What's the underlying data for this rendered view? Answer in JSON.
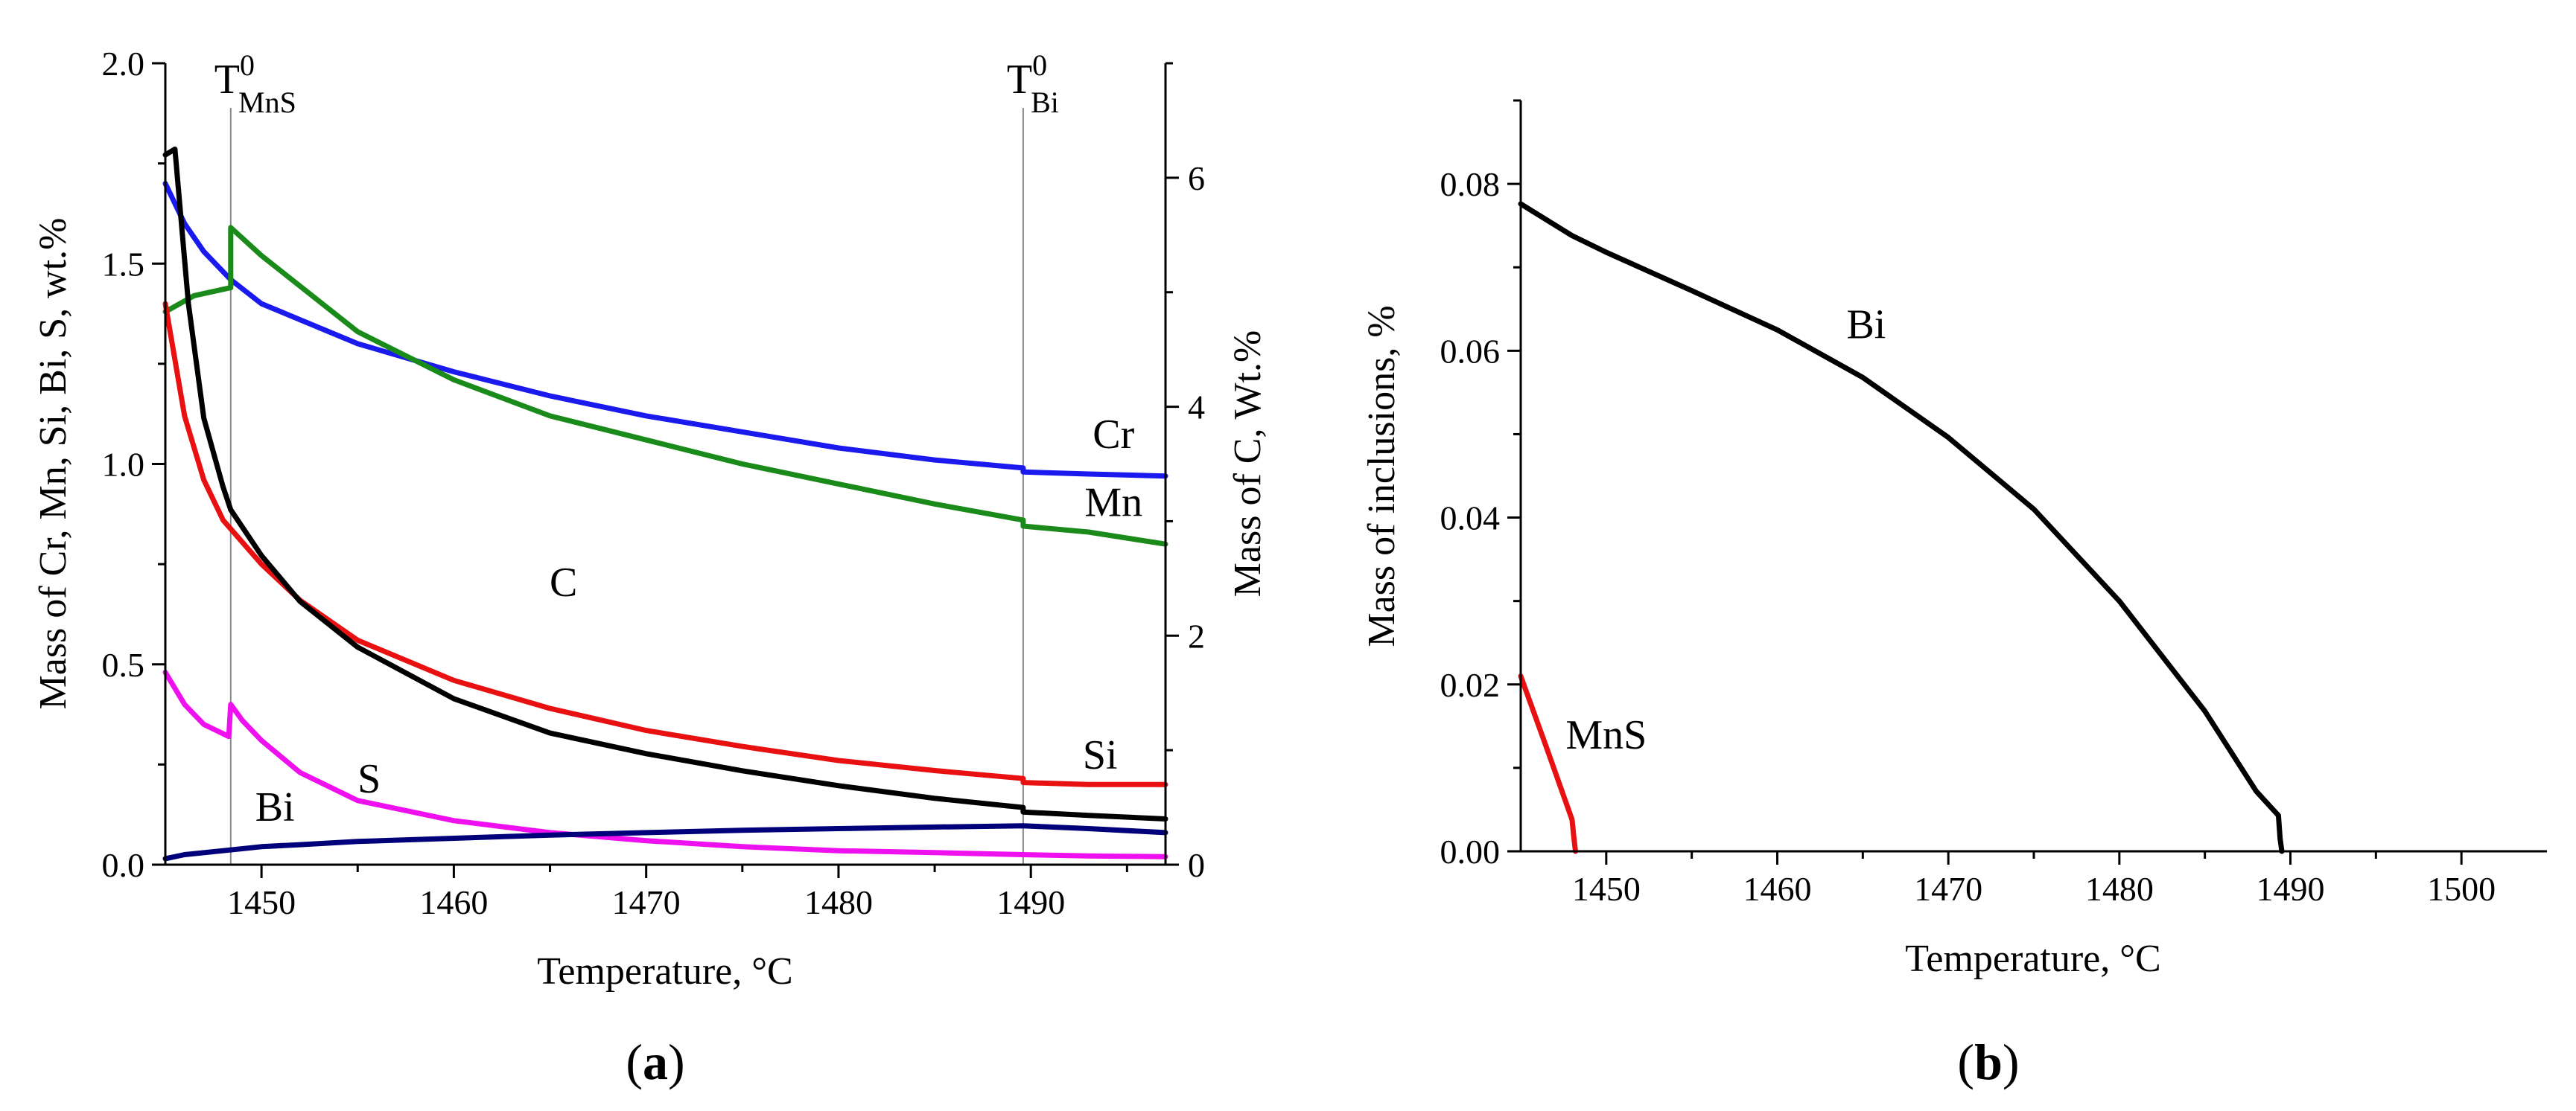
{
  "chart_data": [
    {
      "id": "a",
      "type": "line",
      "panel_label": "(a)",
      "panel_letter": "a",
      "xlabel": "Temperature, °C",
      "ylabel": "Mass of Cr, Mn, Si, Bi, S, wt.%",
      "y2label": "Mass of C, Wt.%",
      "xlim": [
        1445,
        1497
      ],
      "ylim": [
        0,
        2.0
      ],
      "y2lim": [
        0,
        7
      ],
      "xticks": [
        1450,
        1460,
        1470,
        1480,
        1490
      ],
      "yticks": [
        "0.0",
        "0.5",
        "1.0",
        "1.5",
        "2.0"
      ],
      "y2ticks": [
        0,
        2,
        4,
        6
      ],
      "markers": [
        {
          "x": 1448.4,
          "base": "T",
          "sup": "0",
          "sub": "MnS"
        },
        {
          "x": 1489.6,
          "base": "T",
          "sup": "0",
          "sub": "Bi"
        }
      ],
      "series": [
        {
          "name": "Cr",
          "axis": "left",
          "color": "#1a1aee",
          "label_at": [
            1494.3,
            1.04
          ],
          "x": [
            1445,
            1446,
            1447,
            1448.4,
            1450,
            1455,
            1460,
            1465,
            1470,
            1475,
            1480,
            1485,
            1489.6,
            1489.6,
            1493,
            1497
          ],
          "y": [
            1.7,
            1.6,
            1.53,
            1.46,
            1.4,
            1.3,
            1.23,
            1.17,
            1.12,
            1.08,
            1.04,
            1.01,
            0.99,
            0.98,
            0.975,
            0.97
          ]
        },
        {
          "name": "Mn",
          "axis": "left",
          "color": "#1a8a1a",
          "label_at": [
            1494.3,
            0.87
          ],
          "x": [
            1445,
            1446.5,
            1448.4,
            1448.4,
            1450,
            1455,
            1460,
            1465,
            1470,
            1475,
            1480,
            1485,
            1489.6,
            1489.6,
            1493,
            1497
          ],
          "y": [
            1.38,
            1.42,
            1.44,
            1.59,
            1.52,
            1.33,
            1.21,
            1.12,
            1.06,
            1.0,
            0.95,
            0.9,
            0.86,
            0.845,
            0.83,
            0.8
          ]
        },
        {
          "name": "Si",
          "axis": "left",
          "color": "#e81010",
          "label_at": [
            1493.6,
            0.24
          ],
          "x": [
            1445,
            1446,
            1447,
            1448,
            1450,
            1452,
            1455,
            1460,
            1465,
            1470,
            1475,
            1480,
            1485,
            1489.6,
            1489.6,
            1493,
            1497
          ],
          "y": [
            1.4,
            1.12,
            0.96,
            0.86,
            0.75,
            0.66,
            0.56,
            0.46,
            0.39,
            0.335,
            0.295,
            0.26,
            0.235,
            0.215,
            0.205,
            0.2,
            0.2
          ]
        },
        {
          "name": "S",
          "axis": "left",
          "color": "#ee10ee",
          "label_at": [
            1455.6,
            0.18
          ],
          "x": [
            1445,
            1446,
            1447,
            1448.3,
            1448.4,
            1449,
            1450,
            1452,
            1455,
            1460,
            1465,
            1470,
            1475,
            1480,
            1485,
            1489.6,
            1493,
            1497
          ],
          "y": [
            0.48,
            0.4,
            0.35,
            0.32,
            0.4,
            0.36,
            0.31,
            0.23,
            0.16,
            0.11,
            0.08,
            0.06,
            0.045,
            0.035,
            0.03,
            0.025,
            0.022,
            0.02
          ]
        },
        {
          "name": "Bi",
          "axis": "left",
          "color": "#00007a",
          "label_at": [
            1450.7,
            0.11
          ],
          "x": [
            1445,
            1446,
            1448,
            1450,
            1452,
            1455,
            1460,
            1465,
            1470,
            1475,
            1480,
            1485,
            1489.6,
            1493,
            1497
          ],
          "y": [
            0.015,
            0.025,
            0.035,
            0.045,
            0.05,
            0.058,
            0.066,
            0.074,
            0.08,
            0.086,
            0.09,
            0.094,
            0.097,
            0.09,
            0.08
          ]
        },
        {
          "name": "C",
          "axis": "right",
          "color": "#000000",
          "label_at": [
            1465.7,
            0.67
          ],
          "x": [
            1445,
            1445.5,
            1446.2,
            1447,
            1448,
            1448.4,
            1450,
            1452,
            1455,
            1460,
            1465,
            1470,
            1475,
            1480,
            1485,
            1489.6,
            1489.6,
            1493,
            1497
          ],
          "y": [
            6.2,
            6.25,
            4.9,
            3.9,
            3.3,
            3.1,
            2.7,
            2.3,
            1.9,
            1.45,
            1.15,
            0.97,
            0.82,
            0.69,
            0.58,
            0.5,
            0.46,
            0.43,
            0.4
          ]
        }
      ]
    },
    {
      "id": "b",
      "type": "line",
      "panel_label": "(b)",
      "panel_letter": "b",
      "xlabel": "Temperature, °C",
      "ylabel": "Mass of inclusions, %",
      "xlim": [
        1445,
        1505
      ],
      "ylim": [
        0,
        0.09
      ],
      "xticks": [
        1450,
        1460,
        1470,
        1480,
        1490,
        1500
      ],
      "yticks": [
        "0.00",
        "0.02",
        "0.04",
        "0.06",
        "0.08"
      ],
      "series": [
        {
          "name": "Bi",
          "color": "#000000",
          "label_at": [
            1465.2,
            0.0615
          ],
          "x": [
            1445,
            1448,
            1450,
            1455,
            1460,
            1465,
            1470,
            1475,
            1480,
            1485,
            1488,
            1489.3,
            1489.4,
            1489.5
          ],
          "y": [
            0.0776,
            0.0738,
            0.0718,
            0.0672,
            0.0625,
            0.0568,
            0.0496,
            0.041,
            0.03,
            0.0168,
            0.0072,
            0.0043,
            0.0015,
            0.0
          ]
        },
        {
          "name": "MnS",
          "color": "#e81010",
          "label_at": [
            1450.0,
            0.0123
          ],
          "x": [
            1445,
            1446.5,
            1448.0,
            1448.1,
            1448.2
          ],
          "y": [
            0.021,
            0.0125,
            0.0038,
            0.0018,
            0.0
          ]
        }
      ]
    }
  ]
}
